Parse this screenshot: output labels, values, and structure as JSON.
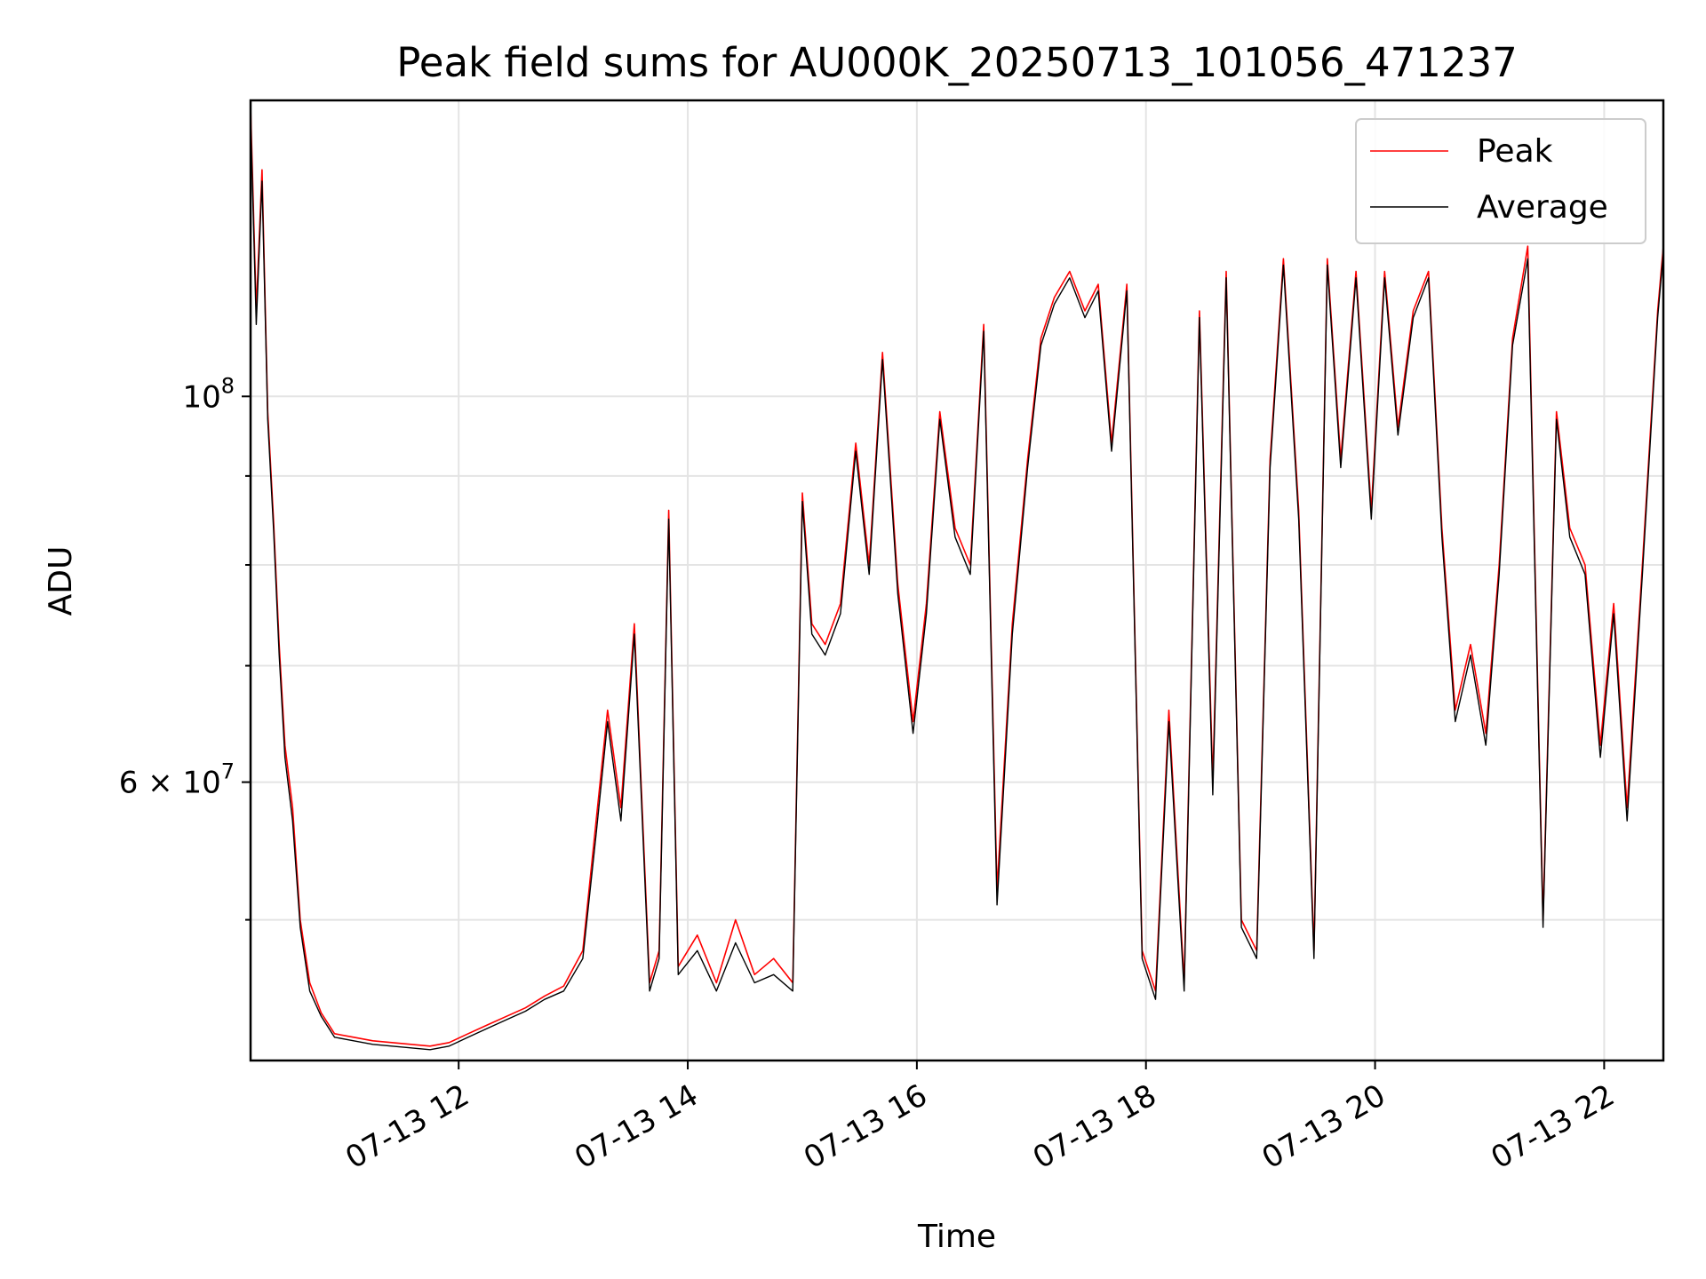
{
  "chart_data": {
    "type": "line",
    "title": "Peak field sums for AU000K_20250713_101056_471237",
    "xlabel": "Time",
    "ylabel": "ADU",
    "yscale": "log",
    "grid": true,
    "legend_position": "top-right",
    "xlim": [
      "2025-07-13 10:11",
      "2025-07-13 22:31"
    ],
    "ylim": [
      41500000,
      148000000
    ],
    "x_ticks": [
      {
        "label": "07-13 12",
        "value": "2025-07-13 12:00"
      },
      {
        "label": "07-13 14",
        "value": "2025-07-13 14:00"
      },
      {
        "label": "07-13 16",
        "value": "2025-07-13 16:00"
      },
      {
        "label": "07-13 18",
        "value": "2025-07-13 18:00"
      },
      {
        "label": "07-13 20",
        "value": "2025-07-13 20:00"
      },
      {
        "label": "07-13 22",
        "value": "2025-07-13 22:00"
      }
    ],
    "y_major_ticks": [
      {
        "base": "10",
        "exp": "8",
        "value": 100000000
      },
      {
        "base": "6 × 10",
        "exp": "7",
        "value": 60000000
      }
    ],
    "y_minor_ticks": [
      50000000,
      70000000,
      80000000,
      90000000
    ],
    "colors": {
      "Peak": "#ff0000",
      "Average": "#000000"
    },
    "series": [
      {
        "name": "Peak",
        "color": "#ff0000",
        "x": [
          "2025-07-13 10:11",
          "2025-07-13 10:14",
          "2025-07-13 10:17",
          "2025-07-13 10:20",
          "2025-07-13 10:23",
          "2025-07-13 10:26",
          "2025-07-13 10:29",
          "2025-07-13 10:33",
          "2025-07-13 10:37",
          "2025-07-13 10:42",
          "2025-07-13 10:48",
          "2025-07-13 10:55",
          "2025-07-13 11:05",
          "2025-07-13 11:15",
          "2025-07-13 11:25",
          "2025-07-13 11:35",
          "2025-07-13 11:45",
          "2025-07-13 11:55",
          "2025-07-13 12:05",
          "2025-07-13 12:15",
          "2025-07-13 12:25",
          "2025-07-13 12:35",
          "2025-07-13 12:45",
          "2025-07-13 12:55",
          "2025-07-13 13:05",
          "2025-07-13 13:12",
          "2025-07-13 13:18",
          "2025-07-13 13:25",
          "2025-07-13 13:32",
          "2025-07-13 13:40",
          "2025-07-13 13:45",
          "2025-07-13 13:50",
          "2025-07-13 13:55",
          "2025-07-13 14:05",
          "2025-07-13 14:15",
          "2025-07-13 14:25",
          "2025-07-13 14:35",
          "2025-07-13 14:45",
          "2025-07-13 14:55",
          "2025-07-13 15:00",
          "2025-07-13 15:05",
          "2025-07-13 15:12",
          "2025-07-13 15:20",
          "2025-07-13 15:28",
          "2025-07-13 15:35",
          "2025-07-13 15:42",
          "2025-07-13 15:50",
          "2025-07-13 15:58",
          "2025-07-13 16:05",
          "2025-07-13 16:12",
          "2025-07-13 16:20",
          "2025-07-13 16:28",
          "2025-07-13 16:35",
          "2025-07-13 16:42",
          "2025-07-13 16:50",
          "2025-07-13 16:58",
          "2025-07-13 17:05",
          "2025-07-13 17:12",
          "2025-07-13 17:20",
          "2025-07-13 17:28",
          "2025-07-13 17:35",
          "2025-07-13 17:42",
          "2025-07-13 17:50",
          "2025-07-13 17:58",
          "2025-07-13 18:05",
          "2025-07-13 18:12",
          "2025-07-13 18:20",
          "2025-07-13 18:28",
          "2025-07-13 18:35",
          "2025-07-13 18:42",
          "2025-07-13 18:50",
          "2025-07-13 18:58",
          "2025-07-13 19:05",
          "2025-07-13 19:12",
          "2025-07-13 19:20",
          "2025-07-13 19:28",
          "2025-07-13 19:35",
          "2025-07-13 19:42",
          "2025-07-13 19:50",
          "2025-07-13 19:58",
          "2025-07-13 20:05",
          "2025-07-13 20:12",
          "2025-07-13 20:20",
          "2025-07-13 20:28",
          "2025-07-13 20:35",
          "2025-07-13 20:42",
          "2025-07-13 20:50",
          "2025-07-13 20:58",
          "2025-07-13 21:05",
          "2025-07-13 21:12",
          "2025-07-13 21:20",
          "2025-07-13 21:28",
          "2025-07-13 21:35",
          "2025-07-13 21:42",
          "2025-07-13 21:50",
          "2025-07-13 21:58",
          "2025-07-13 22:05",
          "2025-07-13 22:12",
          "2025-07-13 22:20",
          "2025-07-13 22:28",
          "2025-07-13 22:31"
        ],
        "y": [
          147000000,
          112000000,
          135000000,
          98000000,
          85000000,
          72000000,
          63000000,
          58000000,
          50000000,
          46000000,
          44200000,
          43000000,
          42800000,
          42600000,
          42500000,
          42400000,
          42300000,
          42500000,
          43000000,
          43500000,
          44000000,
          44500000,
          45200000,
          45800000,
          48000000,
          57000000,
          66000000,
          58000000,
          74000000,
          46000000,
          48000000,
          86000000,
          47000000,
          49000000,
          46000000,
          50000000,
          46500000,
          47500000,
          46000000,
          88000000,
          74000000,
          72000000,
          76000000,
          94000000,
          80000000,
          106000000,
          78000000,
          65000000,
          76000000,
          98000000,
          84000000,
          80000000,
          110000000,
          52000000,
          74000000,
          92000000,
          108000000,
          114000000,
          118000000,
          112000000,
          116000000,
          94000000,
          116000000,
          48000000,
          45500000,
          66000000,
          46000000,
          112000000,
          60000000,
          118000000,
          50000000,
          48000000,
          92000000,
          120000000,
          86000000,
          48000000,
          120000000,
          92000000,
          118000000,
          86000000,
          118000000,
          96000000,
          112000000,
          118000000,
          84000000,
          66000000,
          72000000,
          64000000,
          80000000,
          108000000,
          122000000,
          50000000,
          98000000,
          84000000,
          80000000,
          63000000,
          76000000,
          58000000,
          80000000,
          112000000,
          122000000
        ]
      },
      {
        "name": "Average",
        "color": "#000000",
        "x": [
          "2025-07-13 10:11",
          "2025-07-13 10:14",
          "2025-07-13 10:17",
          "2025-07-13 10:20",
          "2025-07-13 10:23",
          "2025-07-13 10:26",
          "2025-07-13 10:29",
          "2025-07-13 10:33",
          "2025-07-13 10:37",
          "2025-07-13 10:42",
          "2025-07-13 10:48",
          "2025-07-13 10:55",
          "2025-07-13 11:05",
          "2025-07-13 11:15",
          "2025-07-13 11:25",
          "2025-07-13 11:35",
          "2025-07-13 11:45",
          "2025-07-13 11:55",
          "2025-07-13 12:05",
          "2025-07-13 12:15",
          "2025-07-13 12:25",
          "2025-07-13 12:35",
          "2025-07-13 12:45",
          "2025-07-13 12:55",
          "2025-07-13 13:05",
          "2025-07-13 13:12",
          "2025-07-13 13:18",
          "2025-07-13 13:25",
          "2025-07-13 13:32",
          "2025-07-13 13:40",
          "2025-07-13 13:45",
          "2025-07-13 13:50",
          "2025-07-13 13:55",
          "2025-07-13 14:05",
          "2025-07-13 14:15",
          "2025-07-13 14:25",
          "2025-07-13 14:35",
          "2025-07-13 14:45",
          "2025-07-13 14:55",
          "2025-07-13 15:00",
          "2025-07-13 15:05",
          "2025-07-13 15:12",
          "2025-07-13 15:20",
          "2025-07-13 15:28",
          "2025-07-13 15:35",
          "2025-07-13 15:42",
          "2025-07-13 15:50",
          "2025-07-13 15:58",
          "2025-07-13 16:05",
          "2025-07-13 16:12",
          "2025-07-13 16:20",
          "2025-07-13 16:28",
          "2025-07-13 16:35",
          "2025-07-13 16:42",
          "2025-07-13 16:50",
          "2025-07-13 16:58",
          "2025-07-13 17:05",
          "2025-07-13 17:12",
          "2025-07-13 17:20",
          "2025-07-13 17:28",
          "2025-07-13 17:35",
          "2025-07-13 17:42",
          "2025-07-13 17:50",
          "2025-07-13 17:58",
          "2025-07-13 18:05",
          "2025-07-13 18:12",
          "2025-07-13 18:20",
          "2025-07-13 18:28",
          "2025-07-13 18:35",
          "2025-07-13 18:42",
          "2025-07-13 18:50",
          "2025-07-13 18:58",
          "2025-07-13 19:05",
          "2025-07-13 19:12",
          "2025-07-13 19:20",
          "2025-07-13 19:28",
          "2025-07-13 19:35",
          "2025-07-13 19:42",
          "2025-07-13 19:50",
          "2025-07-13 19:58",
          "2025-07-13 20:05",
          "2025-07-13 20:12",
          "2025-07-13 20:20",
          "2025-07-13 20:28",
          "2025-07-13 20:35",
          "2025-07-13 20:42",
          "2025-07-13 20:50",
          "2025-07-13 20:58",
          "2025-07-13 21:05",
          "2025-07-13 21:12",
          "2025-07-13 21:20",
          "2025-07-13 21:28",
          "2025-07-13 21:35",
          "2025-07-13 21:42",
          "2025-07-13 21:50",
          "2025-07-13 21:58",
          "2025-07-13 22:05",
          "2025-07-13 22:12",
          "2025-07-13 22:20",
          "2025-07-13 22:28",
          "2025-07-13 22:31"
        ],
        "y": [
          145000000,
          110000000,
          133000000,
          97000000,
          84000000,
          71000000,
          62000000,
          57000000,
          49500000,
          45500000,
          44000000,
          42800000,
          42600000,
          42400000,
          42300000,
          42200000,
          42100000,
          42300000,
          42800000,
          43300000,
          43800000,
          44300000,
          45000000,
          45500000,
          47500000,
          56000000,
          65000000,
          57000000,
          73000000,
          45500000,
          47500000,
          85000000,
          46500000,
          48000000,
          45500000,
          48500000,
          46000000,
          46500000,
          45500000,
          87000000,
          73000000,
          71000000,
          75000000,
          93000000,
          79000000,
          105000000,
          77000000,
          64000000,
          75000000,
          97000000,
          83000000,
          79000000,
          109000000,
          51000000,
          73000000,
          91000000,
          107000000,
          113000000,
          117000000,
          111000000,
          115000000,
          93000000,
          115000000,
          47500000,
          45000000,
          65000000,
          45500000,
          111000000,
          59000000,
          117000000,
          49500000,
          47500000,
          91000000,
          119000000,
          85000000,
          47500000,
          119000000,
          91000000,
          117000000,
          85000000,
          117000000,
          95000000,
          111000000,
          117000000,
          83000000,
          65000000,
          71000000,
          63000000,
          79000000,
          107000000,
          120000000,
          49500000,
          97000000,
          83000000,
          79000000,
          62000000,
          75000000,
          57000000,
          79000000,
          111000000,
          121000000
        ]
      }
    ]
  }
}
